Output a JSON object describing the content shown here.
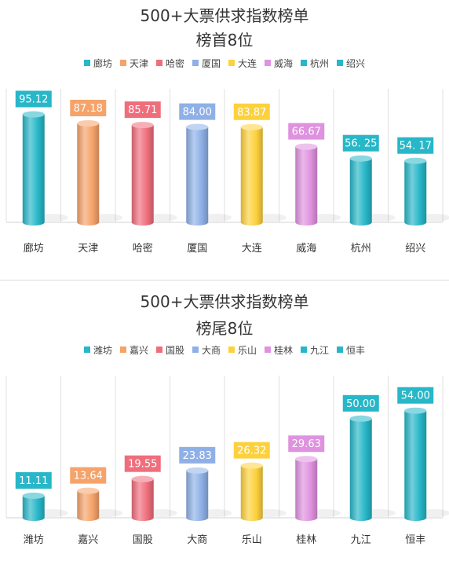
{
  "chart_data": [
    {
      "type": "bar",
      "title": "500+大票供求指数榜单",
      "subtitle": "榜首8位",
      "categories": [
        "廊坊",
        "天津",
        "哈密",
        "厦国",
        "大连",
        "威海",
        "杭州",
        "绍兴"
      ],
      "values": [
        95.12,
        87.18,
        85.71,
        84.0,
        83.87,
        66.67,
        56.25,
        54.17
      ],
      "labels": [
        "95.12",
        "87.18",
        "85.71",
        "84.00",
        "83.87",
        "66.67",
        "56. 25",
        "54. 17"
      ],
      "colors": [
        "#27b7c8",
        "#f6a36a",
        "#f06e7c",
        "#8fb0e6",
        "#fdd13c",
        "#df92df",
        "#27b7c8",
        "#27b7c8"
      ],
      "ylim": [
        0,
        110
      ],
      "legend": "top"
    },
    {
      "type": "bar",
      "title": "500+大票供求指数榜单",
      "subtitle": "榜尾8位",
      "categories": [
        "潍坊",
        "嘉兴",
        "国股",
        "大商",
        "乐山",
        "桂林",
        "九江",
        "恒丰"
      ],
      "values": [
        11.11,
        13.64,
        19.55,
        23.83,
        26.32,
        29.63,
        50.0,
        54.0
      ],
      "labels": [
        "11.11",
        "13.64",
        "19.55",
        "23.83",
        "26.32",
        "29.63",
        "50.00",
        "54.00"
      ],
      "colors": [
        "#27b7c8",
        "#f6a36a",
        "#f06e7c",
        "#8fb0e6",
        "#fdd13c",
        "#df92df",
        "#27b7c8",
        "#27b7c8"
      ],
      "ylim": [
        0,
        63
      ],
      "legend": "top"
    }
  ]
}
